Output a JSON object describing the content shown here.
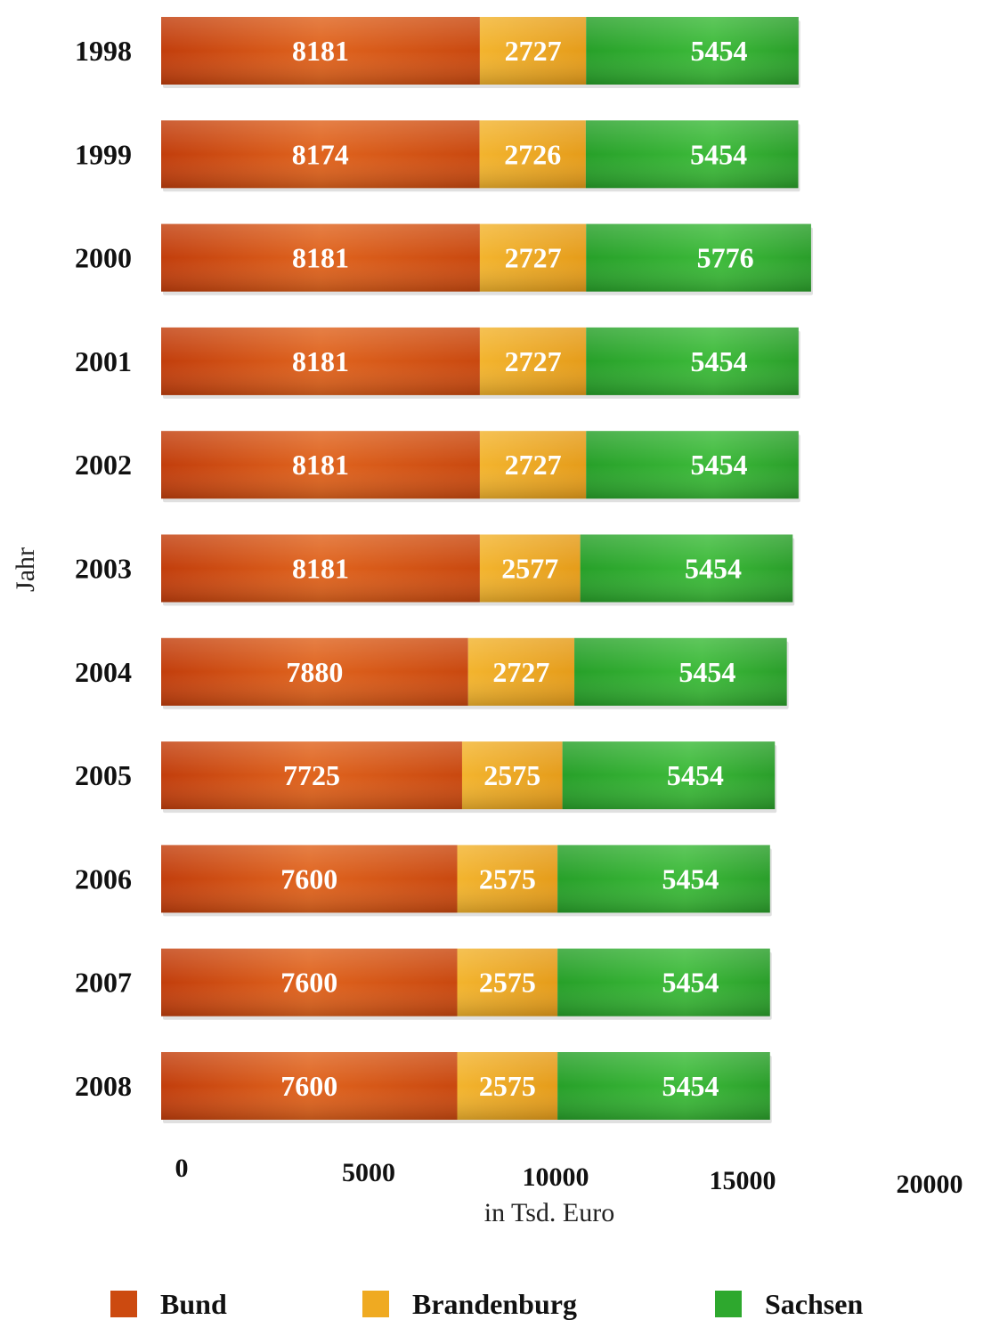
{
  "chart_data": {
    "type": "bar",
    "orientation": "horizontal",
    "stacked": true,
    "categories": [
      "1998",
      "1999",
      "2000",
      "2001",
      "2002",
      "2003",
      "2004",
      "2005",
      "2006",
      "2007",
      "2008"
    ],
    "series": [
      {
        "name": "Bund",
        "color": "#cc4a10",
        "values": [
          8181,
          8174,
          8181,
          8181,
          8181,
          8181,
          7880,
          7725,
          7600,
          7600,
          7600
        ]
      },
      {
        "name": "Brandenburg",
        "color": "#efaa22",
        "values": [
          2727,
          2726,
          2727,
          2727,
          2727,
          2577,
          2727,
          2575,
          2575,
          2575,
          2575
        ]
      },
      {
        "name": "Sachsen",
        "color": "#2ea82e",
        "values": [
          5454,
          5454,
          5776,
          5454,
          5454,
          5454,
          5454,
          5454,
          5454,
          5454,
          5454
        ]
      }
    ],
    "xticks": [
      "0",
      "5000",
      "10000",
      "15000",
      "20000"
    ],
    "xlabel": "in Tsd. Euro",
    "ylabel": "Jahr",
    "xlim": [
      0,
      20000
    ],
    "legend_position": "bottom",
    "grid": false
  }
}
